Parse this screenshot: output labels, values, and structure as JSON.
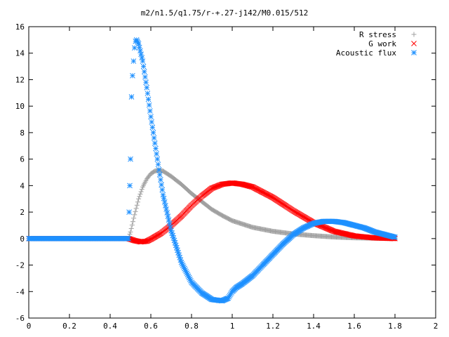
{
  "chart_data": {
    "type": "scatter",
    "title": "m2/n1.5/q1.75/r-+.27-j142/M0.015/512",
    "xlabel": "",
    "ylabel": "",
    "xlim": [
      0,
      2
    ],
    "ylim": [
      -6,
      16
    ],
    "xticks": [
      "0",
      "0.2",
      "0.4",
      "0.6",
      "0.8",
      "1",
      "1.2",
      "1.4",
      "1.6",
      "1.8",
      "2"
    ],
    "yticks": [
      "-6",
      "-4",
      "-2",
      "0",
      "2",
      "4",
      "6",
      "8",
      "10",
      "12",
      "14",
      "16"
    ],
    "grid": false,
    "legend_position": "top-right",
    "series": [
      {
        "name": "R stress",
        "marker": "plus",
        "color": "#a0a0a0",
        "x": [
          0.0,
          0.1,
          0.2,
          0.3,
          0.4,
          0.49,
          0.5,
          0.52,
          0.54,
          0.56,
          0.58,
          0.6,
          0.62,
          0.64,
          0.66,
          0.7,
          0.75,
          0.8,
          0.85,
          0.9,
          0.95,
          1.0,
          1.1,
          1.2,
          1.3,
          1.4,
          1.5,
          1.6,
          1.7,
          1.8
        ],
        "y": [
          0,
          0,
          0,
          0,
          0,
          0,
          0.5,
          1.8,
          3.0,
          3.9,
          4.5,
          4.9,
          5.1,
          5.15,
          5.1,
          4.7,
          4.1,
          3.4,
          2.8,
          2.2,
          1.75,
          1.35,
          0.85,
          0.55,
          0.35,
          0.22,
          0.12,
          0.06,
          0.03,
          0.01
        ]
      },
      {
        "name": "G work",
        "marker": "cross",
        "color": "#ff0000",
        "x": [
          0.0,
          0.1,
          0.2,
          0.3,
          0.4,
          0.49,
          0.5,
          0.52,
          0.55,
          0.58,
          0.6,
          0.65,
          0.7,
          0.75,
          0.8,
          0.85,
          0.9,
          0.95,
          1.0,
          1.05,
          1.1,
          1.2,
          1.3,
          1.4,
          1.5,
          1.6,
          1.7,
          1.8
        ],
        "y": [
          0,
          0,
          0,
          0,
          0,
          0,
          -0.05,
          -0.15,
          -0.25,
          -0.2,
          -0.05,
          0.4,
          1.0,
          1.7,
          2.5,
          3.2,
          3.8,
          4.1,
          4.2,
          4.1,
          3.9,
          3.1,
          2.1,
          1.2,
          0.55,
          0.2,
          0.05,
          0.0
        ]
      },
      {
        "name": "Acoustic flux",
        "marker": "star",
        "color": "#1e90ff",
        "x": [
          0.0,
          0.1,
          0.2,
          0.3,
          0.4,
          0.49,
          0.5,
          0.505,
          0.51,
          0.515,
          0.52,
          0.525,
          0.53,
          0.54,
          0.56,
          0.58,
          0.6,
          0.62,
          0.64,
          0.66,
          0.7,
          0.75,
          0.8,
          0.85,
          0.9,
          0.95,
          0.98,
          1.0,
          1.02,
          1.05,
          1.1,
          1.15,
          1.2,
          1.25,
          1.3,
          1.35,
          1.4,
          1.45,
          1.5,
          1.55,
          1.6,
          1.65,
          1.7,
          1.75,
          1.8
        ],
        "y": [
          0,
          0,
          0,
          0,
          0,
          0,
          6.0,
          10.7,
          12.3,
          13.4,
          14.4,
          14.9,
          15.0,
          14.7,
          13.4,
          11.4,
          9.2,
          7.2,
          5.2,
          3.3,
          0.6,
          -1.8,
          -3.3,
          -4.1,
          -4.6,
          -4.7,
          -4.5,
          -4.0,
          -3.7,
          -3.4,
          -2.8,
          -2.0,
          -1.2,
          -0.4,
          0.3,
          0.8,
          1.15,
          1.3,
          1.3,
          1.2,
          1.0,
          0.8,
          0.5,
          0.3,
          0.1
        ]
      }
    ]
  }
}
